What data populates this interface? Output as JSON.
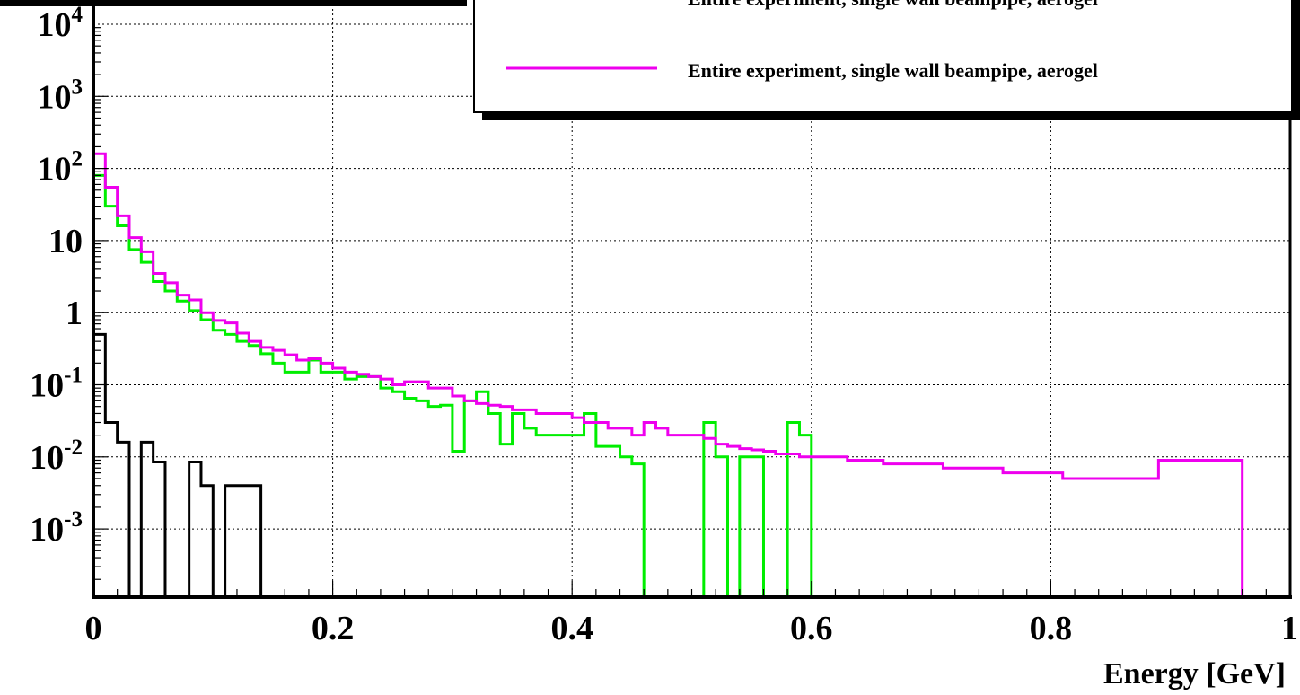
{
  "chart_data": {
    "type": "line",
    "xlabel": "Energy [GeV]",
    "ylabel": "",
    "xlim": [
      0,
      1
    ],
    "ylim": [
      0.0001,
      10000
    ],
    "yscale": "log",
    "grid": true,
    "legend_position": "top-right",
    "x_ticks": [
      0,
      0.2,
      0.4,
      0.6,
      0.8,
      1
    ],
    "x_tick_labels": [
      "0",
      "0.2",
      "0.4",
      "0.6",
      "0.8",
      "1"
    ],
    "y_ticks": [
      {
        "value": 10000,
        "base": "10",
        "exp": "4"
      },
      {
        "value": 1000,
        "base": "10",
        "exp": "3"
      },
      {
        "value": 100,
        "base": "10",
        "exp": "2"
      },
      {
        "value": 10,
        "base": "10",
        "exp": ""
      },
      {
        "value": 1,
        "base": "1",
        "exp": ""
      },
      {
        "value": 0.1,
        "base": "10",
        "exp": "-1"
      },
      {
        "value": 0.01,
        "base": "10",
        "exp": "-2"
      },
      {
        "value": 0.001,
        "base": "10",
        "exp": "-3"
      }
    ],
    "bin_width": 0.01,
    "series": [
      {
        "name": "",
        "color": "#000000",
        "values": [
          0.5,
          0.03,
          0.016,
          0.0001,
          0.016,
          0.0085,
          0.0001,
          0.0001,
          0.0085,
          0.004,
          0.0001,
          0.004,
          0.004,
          0.004,
          0.0001,
          0.0001,
          0.0001,
          0.0001,
          0.0001,
          0.0001,
          0.0001,
          0.0001,
          0.0001,
          0.0001,
          0.0001,
          0.0001,
          0.0001,
          0.0001,
          0.0001,
          0.0001,
          0.0001,
          0.0001,
          0.0001,
          0.0001,
          0.0001,
          0.0001,
          0.0001,
          0.0001,
          0.0001,
          0.0001,
          0.0001,
          0.0001,
          0.0001,
          0.0001,
          0.0001,
          0.0001,
          0.0001,
          0.0001,
          0.0001,
          0.0001,
          0.0001,
          0.0001,
          0.0001,
          0.0001,
          0.0001,
          0.0001,
          0.0001,
          0.0001,
          0.0001,
          0.0001,
          0.0001,
          0.0001,
          0.0001,
          0.0001,
          0.0001,
          0.0001,
          0.0001,
          0.0001,
          0.0001,
          0.0001,
          0.0001,
          0.0001,
          0.0001,
          0.0001,
          0.0001,
          0.0001,
          0.0001,
          0.0001,
          0.0001,
          0.0001,
          0.0001,
          0.0001,
          0.0001,
          0.0001,
          0.0001,
          0.0001,
          0.0001,
          0.0001,
          0.0001,
          0.0001,
          0.0001,
          0.0001,
          0.0001,
          0.0001,
          0.0001,
          0.0001,
          0.0001,
          0.0001,
          0.0001,
          0.0001
        ]
      },
      {
        "name": "",
        "color": "#00ee00",
        "values": [
          80,
          30,
          16,
          7.5,
          5,
          2.7,
          2,
          1.45,
          1.07,
          0.8,
          0.57,
          0.5,
          0.4,
          0.35,
          0.27,
          0.2,
          0.15,
          0.15,
          0.22,
          0.15,
          0.15,
          0.12,
          0.13,
          0.13,
          0.09,
          0.08,
          0.065,
          0.06,
          0.05,
          0.052,
          0.012,
          0.06,
          0.08,
          0.04,
          0.015,
          0.04,
          0.025,
          0.02,
          0.02,
          0.02,
          0.02,
          0.04,
          0.014,
          0.014,
          0.01,
          0.008,
          0.0001,
          0.0001,
          0.0001,
          0.0001,
          0.0001,
          0.03,
          0.01,
          0.0001,
          0.01,
          0.01,
          0.0001,
          0.0001,
          0.03,
          0.02,
          0.0001,
          0.0001,
          0.0001,
          0.0001,
          0.0001,
          0.0001,
          0.0001,
          0.0001,
          0.0001,
          0.0001,
          0.0001,
          0.0001,
          0.0001,
          0.0001,
          0.0001,
          0.0001,
          0.0001,
          0.0001,
          0.0001,
          0.0001,
          0.0001,
          0.0001,
          0.0001,
          0.0001,
          0.0001,
          0.0001,
          0.0001,
          0.0001,
          0.0001,
          0.0001,
          0.0001,
          0.0001,
          0.0001,
          0.0001,
          0.0001,
          0.0001,
          0.0001,
          0.0001,
          0.0001,
          0.0001
        ]
      },
      {
        "name": "Entire experiment, single wall beampipe, aerogel",
        "color": "#ee00ee",
        "values": [
          160,
          55,
          22,
          11,
          7,
          3.5,
          2.6,
          1.75,
          1.5,
          1.0,
          0.78,
          0.72,
          0.52,
          0.4,
          0.33,
          0.3,
          0.26,
          0.22,
          0.23,
          0.2,
          0.17,
          0.15,
          0.14,
          0.13,
          0.12,
          0.1,
          0.11,
          0.11,
          0.09,
          0.09,
          0.07,
          0.06,
          0.055,
          0.052,
          0.05,
          0.045,
          0.045,
          0.04,
          0.04,
          0.04,
          0.035,
          0.03,
          0.03,
          0.025,
          0.025,
          0.02,
          0.03,
          0.025,
          0.02,
          0.02,
          0.02,
          0.018,
          0.015,
          0.014,
          0.013,
          0.0125,
          0.012,
          0.011,
          0.011,
          0.01,
          0.01,
          0.01,
          0.01,
          0.009,
          0.009,
          0.009,
          0.008,
          0.008,
          0.008,
          0.008,
          0.008,
          0.007,
          0.007,
          0.007,
          0.007,
          0.007,
          0.006,
          0.006,
          0.006,
          0.006,
          0.006,
          0.005,
          0.005,
          0.005,
          0.005,
          0.005,
          0.005,
          0.005,
          0.005,
          0.009,
          0.009,
          0.009,
          0.009,
          0.009,
          0.009,
          0.009,
          0.0001,
          0.0001,
          0.0001,
          0.0001
        ]
      }
    ],
    "legend": {
      "partial_line_text": "Entire experiment, single wall beampipe, aerogel",
      "entries": [
        "Entire experiment, single wall beampipe, aerogel"
      ]
    }
  }
}
